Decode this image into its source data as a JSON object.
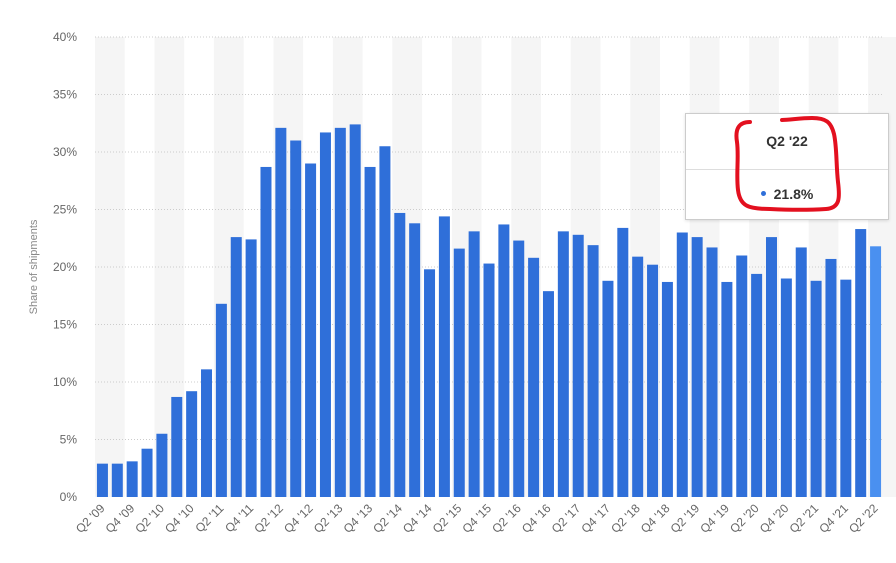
{
  "chart_data": {
    "type": "bar",
    "ylabel": "Share of shipments",
    "ylim": [
      0,
      40
    ],
    "y_ticks": [
      "0%",
      "5%",
      "10%",
      "15%",
      "20%",
      "25%",
      "30%",
      "35%",
      "40%"
    ],
    "y_tick_values": [
      0,
      5,
      10,
      15,
      20,
      25,
      30,
      35,
      40
    ],
    "x_tick_labels": [
      "Q2 '09",
      "Q4 '09",
      "Q2 '10",
      "Q4 '10",
      "Q2 '11",
      "Q4 '11",
      "Q2 '12",
      "Q4 '12",
      "Q2 '13",
      "Q4 '13",
      "Q2 '14",
      "Q4 '14",
      "Q2 '15",
      "Q4 '15",
      "Q2 '16",
      "Q4 '16",
      "Q2 '17",
      "Q4 '17",
      "Q2 '18",
      "Q4 '18",
      "Q2 '19",
      "Q4 '19",
      "Q2 '20",
      "Q4 '20",
      "Q2 '21",
      "Q4 '21",
      "Q2 '22"
    ],
    "categories": [
      "Q2 '09",
      "Q3 '09",
      "Q4 '09",
      "Q1 '10",
      "Q2 '10",
      "Q3 '10",
      "Q4 '10",
      "Q1 '11",
      "Q2 '11",
      "Q3 '11",
      "Q4 '11",
      "Q1 '12",
      "Q2 '12",
      "Q3 '12",
      "Q4 '12",
      "Q1 '13",
      "Q2 '13",
      "Q3 '13",
      "Q4 '13",
      "Q1 '14",
      "Q2 '14",
      "Q3 '14",
      "Q4 '14",
      "Q1 '15",
      "Q2 '15",
      "Q3 '15",
      "Q4 '15",
      "Q1 '16",
      "Q2 '16",
      "Q3 '16",
      "Q4 '16",
      "Q1 '17",
      "Q2 '17",
      "Q3 '17",
      "Q4 '17",
      "Q1 '18",
      "Q2 '18",
      "Q3 '18",
      "Q4 '18",
      "Q1 '19",
      "Q2 '19",
      "Q3 '19",
      "Q4 '19",
      "Q1 '20",
      "Q2 '20",
      "Q3 '20",
      "Q4 '20",
      "Q1 '21",
      "Q2 '21",
      "Q3 '21",
      "Q4 '21",
      "Q1 '22",
      "Q2 '22"
    ],
    "values": [
      2.9,
      2.9,
      3.1,
      4.2,
      5.5,
      8.7,
      9.2,
      11.1,
      16.8,
      22.6,
      22.4,
      28.7,
      32.1,
      31.0,
      29.0,
      31.7,
      32.1,
      32.4,
      28.7,
      30.5,
      24.7,
      23.8,
      19.8,
      24.4,
      21.6,
      23.1,
      20.3,
      23.7,
      22.3,
      20.8,
      17.9,
      23.1,
      22.8,
      21.9,
      18.8,
      23.4,
      20.9,
      20.2,
      18.7,
      23.0,
      22.6,
      21.7,
      18.7,
      21.0,
      19.4,
      22.6,
      19.0,
      21.7,
      18.8,
      20.7,
      18.9,
      23.3,
      21.8
    ],
    "highlight_index": 52,
    "grid": true,
    "colors": {
      "bar": "#2f6fd9",
      "bar_highlight": "#4a90f0",
      "band": "#f5f5f5",
      "grid": "#cccccc"
    }
  },
  "tooltip": {
    "title": "Q2 '22",
    "value": "21.8%",
    "dot_color": "#2f6fd9"
  },
  "annotation": {
    "color": "#e3101f"
  }
}
